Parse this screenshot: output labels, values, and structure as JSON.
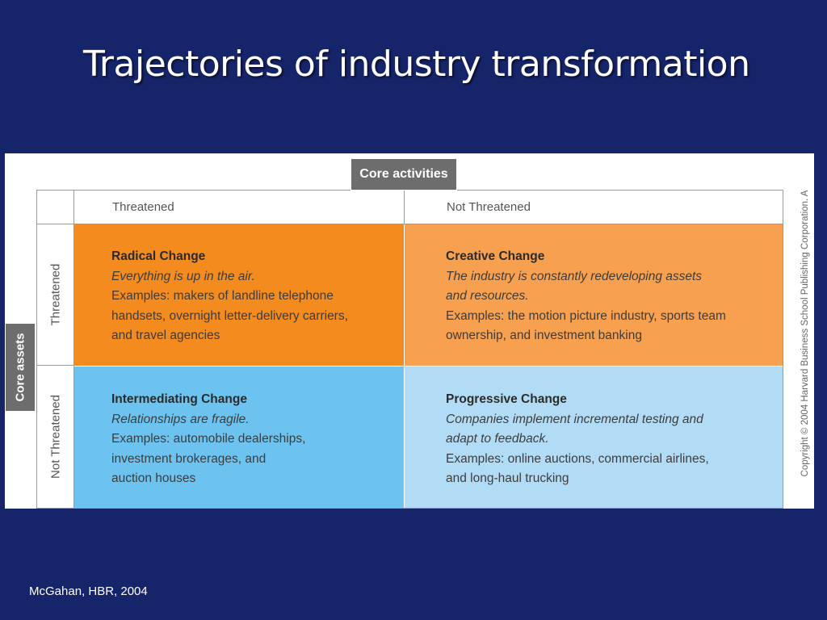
{
  "slide": {
    "title": "Trajectories of industry transformation",
    "source": "McGahan, HBR, 2004"
  },
  "matrix": {
    "column_axis_label": "Core activities",
    "row_axis_label": "Core assets",
    "columns": [
      "Threatened",
      "Not Threatened"
    ],
    "rows": [
      "Threatened",
      "Not Threatened"
    ],
    "cells": [
      {
        "title": "Radical Change",
        "tagline": "Everything is up in the air.",
        "examples": "Examples: makers of landline telephone\nhandsets, overnight letter-delivery carriers,\nand travel agencies"
      },
      {
        "title": "Creative Change",
        "tagline": "The industry is constantly redeveloping assets\nand resources.",
        "examples": "Examples: the motion picture industry, sports team\nownership, and investment banking"
      },
      {
        "title": "Intermediating Change",
        "tagline": "Relationships are fragile.",
        "examples": "Examples: automobile dealerships,\ninvestment brokerages, and\nauction houses"
      },
      {
        "title": "Progressive Change",
        "tagline": "Companies implement incremental testing and\nadapt to feedback.",
        "examples": "Examples: online auctions, commercial airlines,\nand long-haul trucking"
      }
    ],
    "copyright": "Copyright © 2004 Harvard Business School Publishing Corporation. A"
  },
  "colors": {
    "background": "#16246a",
    "radical": "#f38b1f",
    "creative": "#f6a050",
    "intermediating": "#6cc3f0",
    "progressive": "#b2dcf5"
  }
}
